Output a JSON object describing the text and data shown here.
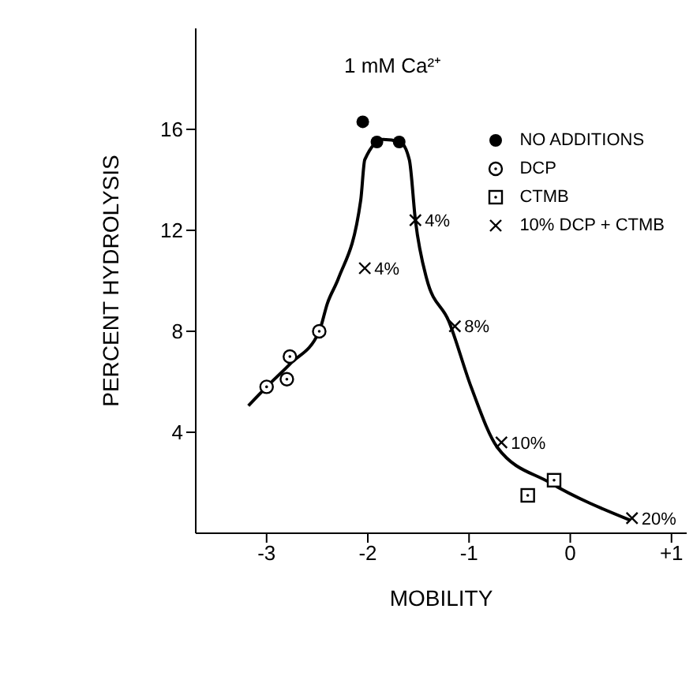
{
  "chart_data": {
    "type": "scatter",
    "title": "1 mM Ca²⁺",
    "xlabel": "MOBILITY",
    "ylabel": "PERCENT HYDROLYSIS",
    "xlim": [
      -3.7,
      1.15
    ],
    "xticks": [
      -3,
      -2,
      -1,
      0,
      {
        "value": 1,
        "label": "+1"
      }
    ],
    "ylim": [
      0,
      20
    ],
    "yticks": [
      4,
      8,
      12,
      16
    ],
    "legend": "top right",
    "annotations": [
      {
        "text": "4%",
        "x": -1.53,
        "y": 12.4
      },
      {
        "text": "4%",
        "x": -2.03,
        "y": 10.5
      },
      {
        "text": "8%",
        "x": -1.14,
        "y": 8.2
      },
      {
        "text": "10%",
        "x": -0.68,
        "y": 3.6
      },
      {
        "text": "20%",
        "x": 0.61,
        "y": 0.6
      }
    ],
    "series": [
      {
        "name": "NO ADDITIONS",
        "color": "#000000",
        "marker": "circle",
        "x": [
          -2.05,
          -1.91,
          -1.69
        ],
        "values": [
          16.3,
          15.5,
          15.5
        ]
      },
      {
        "name": "DCP",
        "color": "#000000",
        "marker": "circle-open",
        "x": [
          -3.0,
          -2.8,
          -2.77,
          -2.48
        ],
        "values": [
          5.8,
          6.1,
          7.0,
          8.0
        ]
      },
      {
        "name": "CTMB",
        "color": "#000000",
        "marker": "square",
        "x": [
          -0.42,
          -0.16
        ],
        "values": [
          1.5,
          2.1
        ]
      },
      {
        "name": "10% DCP + CTMB",
        "color": "#000000",
        "marker": "cross",
        "x": [
          -1.53,
          -2.03,
          -1.14,
          -0.68,
          0.61
        ],
        "values": [
          12.4,
          10.5,
          8.2,
          3.6,
          0.6
        ]
      },
      {
        "type": "line",
        "color": "#000000",
        "marker": "none",
        "line_style": "solid",
        "x": [
          -3.18,
          -3.0,
          -2.77,
          -2.48,
          -2.4,
          -2.29,
          -2.07,
          -2.03,
          -1.85,
          -1.68,
          -1.59,
          -1.53,
          -1.42,
          -1.2,
          -0.98,
          -0.72,
          -0.2,
          0.59
        ],
        "values": [
          5.05,
          5.8,
          6.7,
          8.0,
          9.1,
          10.1,
          13.2,
          14.8,
          15.6,
          15.5,
          14.8,
          12.4,
          10.1,
          8.4,
          5.8,
          3.4,
          2.0,
          0.52
        ]
      }
    ]
  }
}
